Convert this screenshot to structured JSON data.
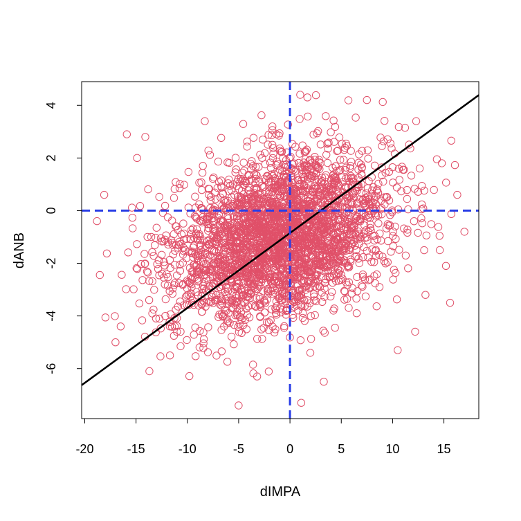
{
  "chart_data": {
    "type": "scatter",
    "xlabel": "dIMPA",
    "ylabel": "dANB",
    "xlim": [
      -20.3,
      18.4
    ],
    "ylim": [
      -7.9,
      4.9
    ],
    "x_ticks": [
      -20,
      -15,
      -10,
      -5,
      0,
      5,
      10,
      15
    ],
    "y_ticks": [
      -6,
      -4,
      -2,
      0,
      2,
      4
    ],
    "point_color": "#e05069",
    "point_count": 3000,
    "point_distribution": {
      "x_mean": -1.0,
      "x_sd": 5.3,
      "y_mean": -1.0,
      "y_sd": 1.6,
      "correlation": 0.3
    },
    "extreme_points": [
      {
        "x": -18.1,
        "y": 0.6
      },
      {
        "x": -18.8,
        "y": -0.4
      },
      {
        "x": -17.0,
        "y": -5.0
      },
      {
        "x": -16.5,
        "y": -4.4
      },
      {
        "x": -15.9,
        "y": 2.9
      },
      {
        "x": -14.9,
        "y": 2.0
      },
      {
        "x": -14.1,
        "y": 2.8
      },
      {
        "x": -13.7,
        "y": -6.1
      },
      {
        "x": -5.0,
        "y": -7.4
      },
      {
        "x": 1.1,
        "y": -7.3
      },
      {
        "x": 3.3,
        "y": -6.5
      },
      {
        "x": 1.0,
        "y": 4.4
      },
      {
        "x": 1.7,
        "y": 4.3
      },
      {
        "x": 7.5,
        "y": 4.2
      },
      {
        "x": 12.3,
        "y": 3.4
      },
      {
        "x": 14.8,
        "y": 1.8
      },
      {
        "x": 16.3,
        "y": 0.6
      },
      {
        "x": 17.0,
        "y": -0.8
      },
      {
        "x": 15.6,
        "y": -3.5
      },
      {
        "x": 13.2,
        "y": -3.2
      },
      {
        "x": 12.2,
        "y": -4.6
      },
      {
        "x": 10.5,
        "y": -5.3
      },
      {
        "x": 15.2,
        "y": -2.1
      },
      {
        "x": 14.6,
        "y": -1.5
      },
      {
        "x": -3.2,
        "y": -6.3
      },
      {
        "x": -11.7,
        "y": -5.5
      },
      {
        "x": -8.3,
        "y": 3.4
      }
    ],
    "regression_line": {
      "intercept": -0.85,
      "slope": 0.2847,
      "color": "#000000"
    },
    "reference_lines": {
      "x": 0,
      "y": 0,
      "color": "#2a3ee6",
      "style": "dashed"
    },
    "grid": false
  }
}
